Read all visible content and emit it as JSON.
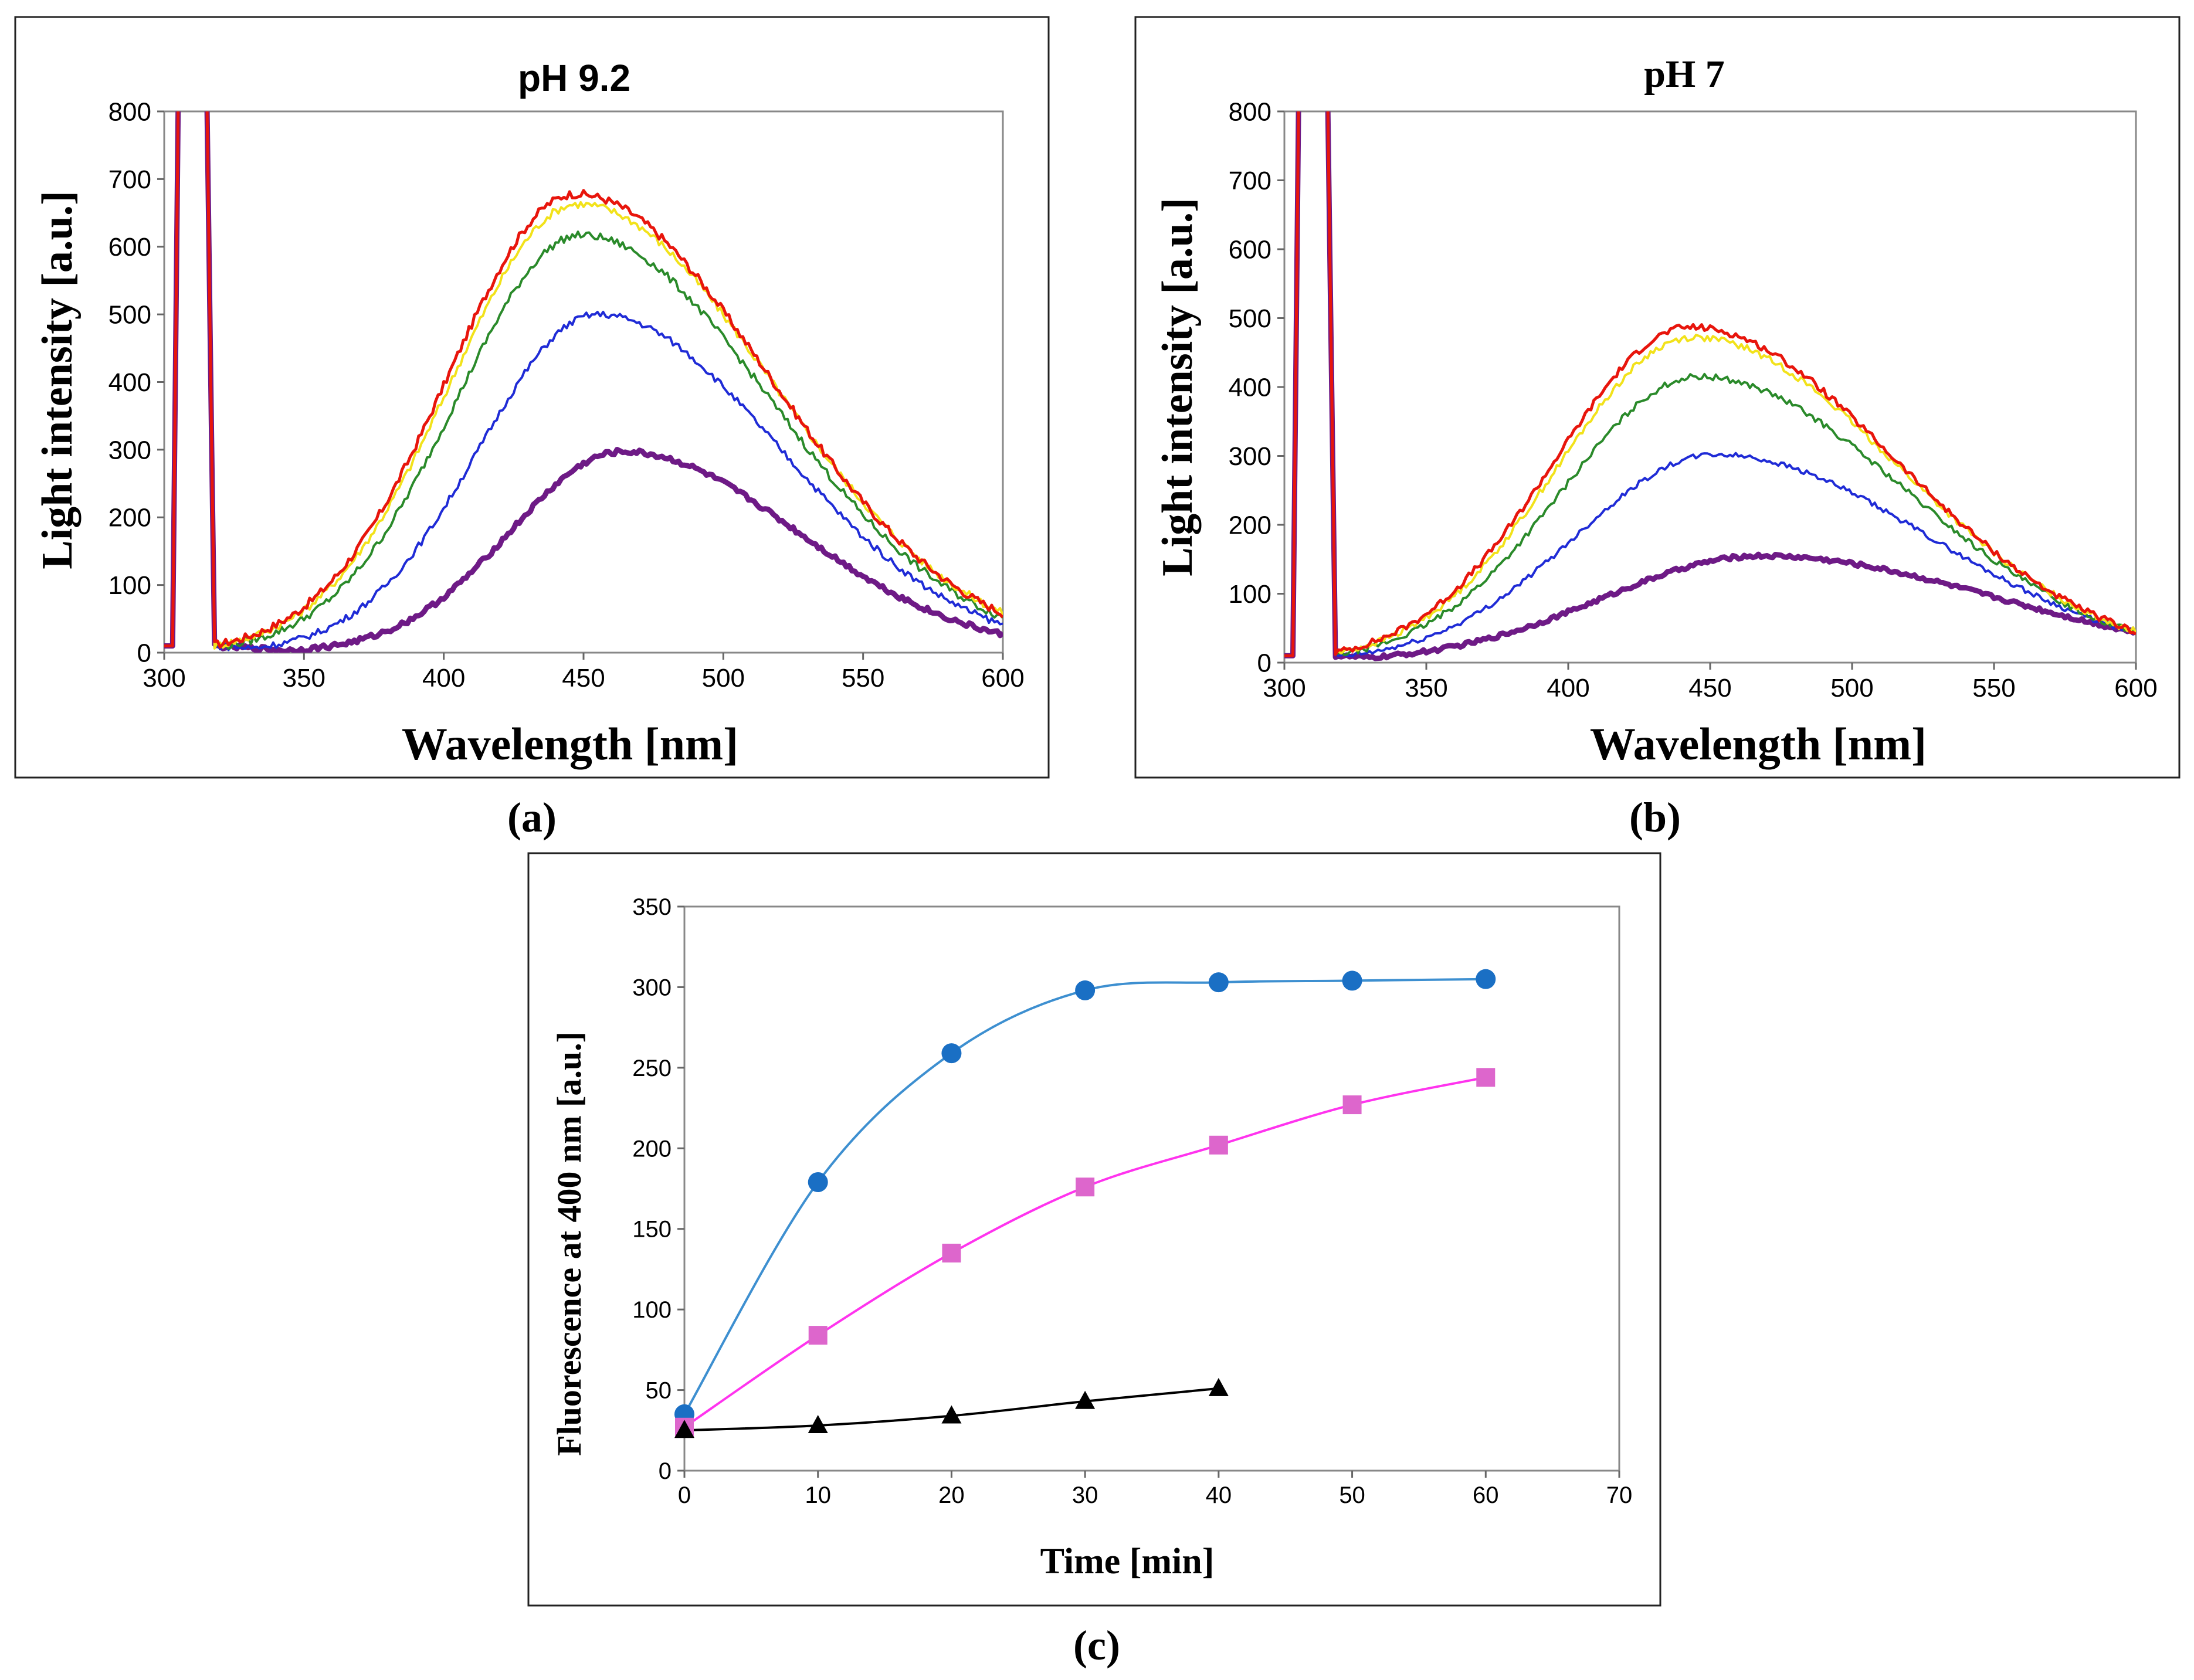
{
  "chart_data": [
    {
      "type": "line",
      "panel_label": "(a)",
      "title": "pH 9.2",
      "xlabel": "Wavelength [nm]",
      "ylabel": "Light intensity [a.u.]",
      "xlim": [
        300,
        600
      ],
      "ylim": [
        0,
        800
      ],
      "x_ticks": [
        300,
        350,
        400,
        450,
        500,
        550,
        600
      ],
      "y_ticks": [
        0,
        100,
        200,
        300,
        400,
        500,
        600,
        700,
        800
      ],
      "x_tick_labels": [
        "300",
        "350",
        "400",
        "450",
        "500",
        "550",
        "600"
      ],
      "y_tick_labels": [
        "0",
        "100",
        "200",
        "300",
        "400",
        "500",
        "600",
        "700",
        "800"
      ],
      "series": [
        {
          "name": "red",
          "color": "#e8150c",
          "peak_x": 447,
          "peak_y": 678,
          "onset": 343
        },
        {
          "name": "yellow",
          "color": "#f2e21a",
          "peak_x": 448,
          "peak_y": 663,
          "onset": 344
        },
        {
          "name": "green",
          "color": "#2a8a2a",
          "peak_x": 449,
          "peak_y": 617,
          "onset": 347
        },
        {
          "name": "blue",
          "color": "#1f2bd6",
          "peak_x": 455,
          "peak_y": 500,
          "onset": 358
        },
        {
          "name": "purple",
          "color": "#6e1a86",
          "peak_x": 464,
          "peak_y": 297,
          "onset": 372
        }
      ]
    },
    {
      "type": "line",
      "panel_label": "(b)",
      "title": "pH 7",
      "xlabel": "Wavelength [nm]",
      "ylabel": "Light intensity [a.u.]",
      "xlim": [
        300,
        600
      ],
      "ylim": [
        0,
        800
      ],
      "x_ticks": [
        300,
        350,
        400,
        450,
        500,
        550,
        600
      ],
      "y_ticks": [
        0,
        100,
        200,
        300,
        400,
        500,
        600,
        700,
        800
      ],
      "x_tick_labels": [
        "300",
        "350",
        "400",
        "450",
        "500",
        "550",
        "600"
      ],
      "y_tick_labels": [
        "0",
        "100",
        "200",
        "300",
        "400",
        "500",
        "600",
        "700",
        "800"
      ],
      "series": [
        {
          "name": "red",
          "color": "#e8150c",
          "peak_x": 443,
          "peak_y": 487,
          "onset": 334
        },
        {
          "name": "yellow",
          "color": "#f2e21a",
          "peak_x": 444,
          "peak_y": 472,
          "onset": 335
        },
        {
          "name": "green",
          "color": "#2a8a2a",
          "peak_x": 446,
          "peak_y": 415,
          "onset": 336
        },
        {
          "name": "blue",
          "color": "#1f2bd6",
          "peak_x": 452,
          "peak_y": 302,
          "onset": 338
        },
        {
          "name": "purple",
          "color": "#6e1a86",
          "peak_x": 468,
          "peak_y": 155,
          "onset": 340
        }
      ]
    },
    {
      "type": "scatter",
      "panel_label": "(c)",
      "title": "",
      "xlabel": "Time [min]",
      "ylabel": "Fluorescence at 400 nm [a.u.]",
      "xlim": [
        0,
        70
      ],
      "ylim": [
        0,
        350
      ],
      "x_ticks": [
        0,
        10,
        20,
        30,
        40,
        50,
        60,
        70
      ],
      "y_ticks": [
        0,
        50,
        100,
        150,
        200,
        250,
        300,
        350
      ],
      "x_tick_labels": [
        "0",
        "10",
        "20",
        "30",
        "40",
        "50",
        "60",
        "70"
      ],
      "y_tick_labels": [
        "0",
        "50",
        "100",
        "150",
        "200",
        "250",
        "300",
        "350"
      ],
      "series": [
        {
          "name": "circles",
          "marker": "circle",
          "color": "#1a6fc4",
          "line_color": "#3d8fd0",
          "x": [
            0,
            10,
            20,
            30,
            40,
            50,
            60
          ],
          "y": [
            35,
            179,
            259,
            298,
            303,
            304,
            305
          ]
        },
        {
          "name": "squares",
          "marker": "square",
          "color": "#dd66cc",
          "line_color": "#ff33ee",
          "x": [
            0,
            10,
            20,
            30,
            40,
            50,
            60
          ],
          "y": [
            27,
            84,
            135,
            176,
            202,
            227,
            244
          ]
        },
        {
          "name": "triangles",
          "marker": "triangle",
          "color": "#000000",
          "line_color": "#000000",
          "x": [
            0,
            10,
            20,
            30,
            40
          ],
          "y": [
            25,
            28,
            34,
            43,
            51
          ]
        }
      ]
    }
  ]
}
